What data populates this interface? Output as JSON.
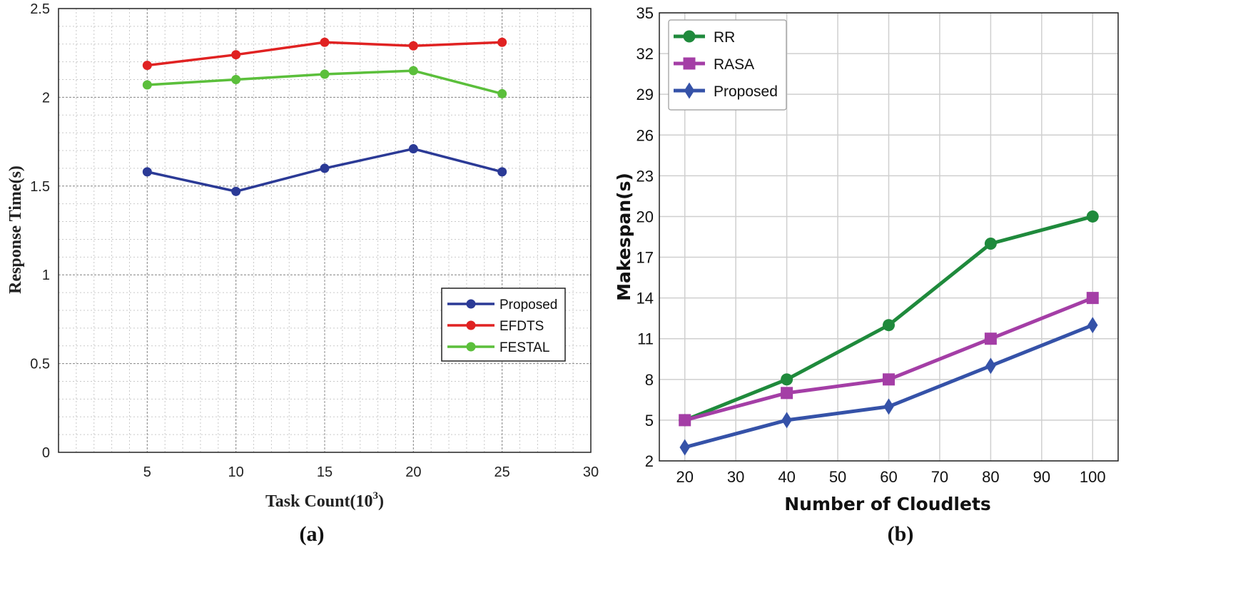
{
  "chart_data": [
    {
      "panel_label": "(a)",
      "type": "line",
      "title": "",
      "xlabel": "Task Count(10",
      "xlabel_sup": "3",
      "xlabel_close": ")",
      "ylabel": "Response Time(s)",
      "xlim": [
        0,
        30
      ],
      "ylim": [
        0,
        2.5
      ],
      "xticks": [
        5,
        10,
        15,
        20,
        25,
        30
      ],
      "xtick_labels": [
        "5",
        "10",
        "15",
        "20",
        "25",
        "30"
      ],
      "yticks": [
        0,
        0.5,
        1,
        1.5,
        2,
        2.5
      ],
      "ytick_labels": [
        "0",
        "0.5",
        "1",
        "1.5",
        "2",
        "2.5"
      ],
      "grid": true,
      "legend_position": "bottom-right",
      "series": [
        {
          "name": "Proposed",
          "color": "#2b3a96",
          "marker": "circle",
          "x": [
            5,
            10,
            15,
            20,
            25
          ],
          "y": [
            1.58,
            1.47,
            1.6,
            1.71,
            1.58
          ]
        },
        {
          "name": "EFDTS",
          "color": "#e02222",
          "marker": "circle",
          "x": [
            5,
            10,
            15,
            20,
            25
          ],
          "y": [
            2.18,
            2.24,
            2.31,
            2.29,
            2.31
          ]
        },
        {
          "name": "FESTAL",
          "color": "#5bbf3b",
          "marker": "circle",
          "x": [
            5,
            10,
            15,
            20,
            25
          ],
          "y": [
            2.07,
            2.1,
            2.13,
            2.15,
            2.02
          ]
        }
      ]
    },
    {
      "panel_label": "(b)",
      "type": "line",
      "title": "",
      "xlabel": "Number of Cloudlets",
      "ylabel": "Makespan(s)",
      "xlim": [
        15,
        105
      ],
      "ylim": [
        2,
        35
      ],
      "xticks": [
        20,
        30,
        40,
        50,
        60,
        70,
        80,
        90,
        100
      ],
      "xtick_labels": [
        "20",
        "30",
        "40",
        "50",
        "60",
        "70",
        "80",
        "90",
        "100"
      ],
      "yticks": [
        2,
        5,
        8,
        11,
        14,
        17,
        20,
        23,
        26,
        29,
        32,
        35
      ],
      "ytick_labels": [
        "2",
        "5",
        "8",
        "11",
        "14",
        "17",
        "20",
        "23",
        "26",
        "29",
        "32",
        "35"
      ],
      "grid": true,
      "legend_position": "top-left",
      "series": [
        {
          "name": "RR",
          "color": "#1f8a3c",
          "marker": "circle",
          "x": [
            20,
            40,
            60,
            80,
            100
          ],
          "y": [
            5,
            8,
            12,
            18,
            20
          ]
        },
        {
          "name": "RASA",
          "color": "#a43ea6",
          "marker": "square",
          "x": [
            20,
            40,
            60,
            80,
            100
          ],
          "y": [
            5,
            7,
            8,
            11,
            14
          ]
        },
        {
          "name": "Proposed",
          "color": "#3552a8",
          "marker": "diamond",
          "x": [
            20,
            40,
            60,
            80,
            100
          ],
          "y": [
            3,
            5,
            6,
            9,
            12
          ]
        }
      ]
    }
  ]
}
